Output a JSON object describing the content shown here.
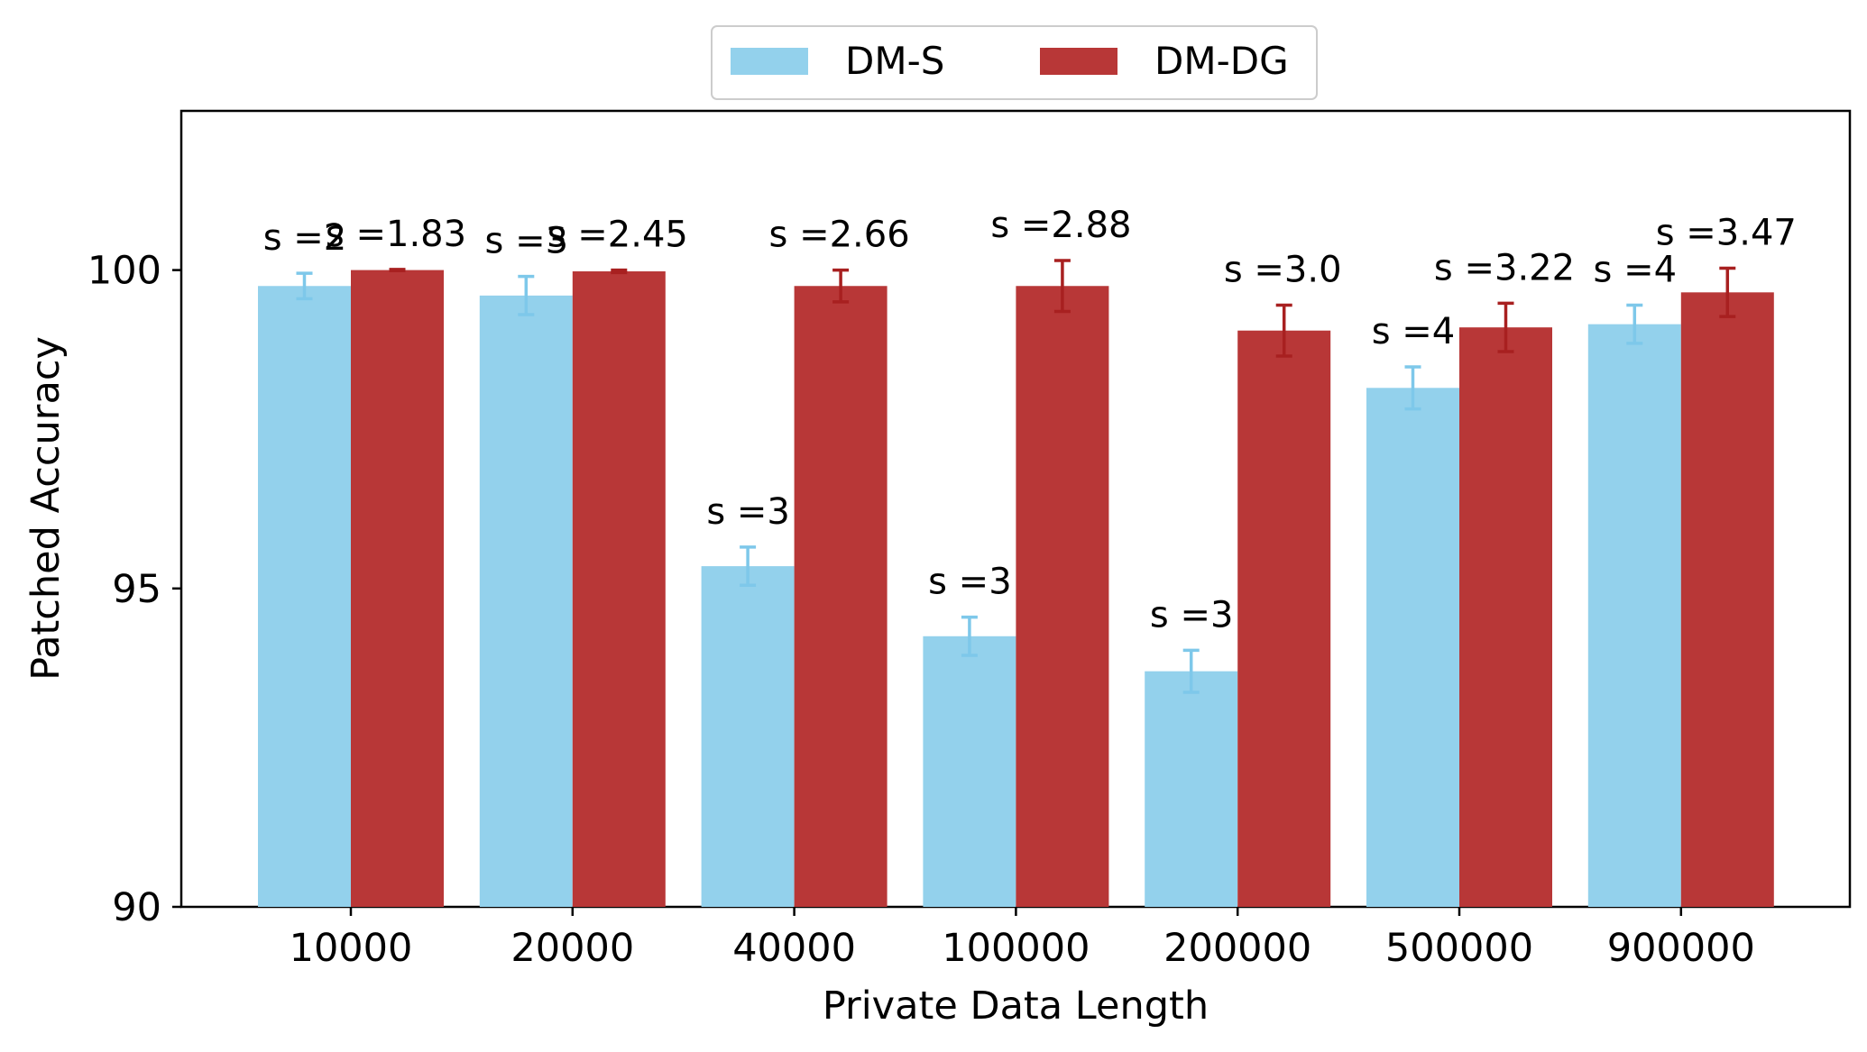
{
  "chart_data": {
    "type": "bar",
    "title": "",
    "xlabel": "Private Data Length",
    "ylabel": "Patched Accuracy",
    "ylim": [
      90,
      102.5
    ],
    "yticks": [
      90,
      95,
      100
    ],
    "grid": false,
    "legend_position": "top-center",
    "categories": [
      "10000",
      "20000",
      "40000",
      "100000",
      "200000",
      "500000",
      "900000"
    ],
    "series": [
      {
        "name": "DM-S",
        "color": "#93D1EC",
        "error_color": "#7EC8EA",
        "values": [
          99.75,
          99.6,
          95.35,
          94.25,
          93.7,
          98.15,
          99.15
        ],
        "errors": [
          0.2,
          0.3,
          0.3,
          0.3,
          0.33,
          0.33,
          0.3
        ],
        "annotations": [
          "s =2",
          "s =3",
          "s =3",
          "s =3",
          "s =3",
          "s =4",
          "s =4"
        ]
      },
      {
        "name": "DM-DG",
        "color": "#B83737",
        "error_color": "#A82020",
        "values": [
          100.0,
          99.98,
          99.75,
          99.75,
          99.05,
          99.1,
          99.65
        ],
        "errors": [
          0.01,
          0.02,
          0.25,
          0.4,
          0.4,
          0.38,
          0.38
        ],
        "annotations": [
          "s =1.83",
          "s =2.45",
          "s =2.66",
          "s =2.88",
          "s =3.0",
          "s =3.22",
          "s =3.47"
        ]
      }
    ]
  }
}
